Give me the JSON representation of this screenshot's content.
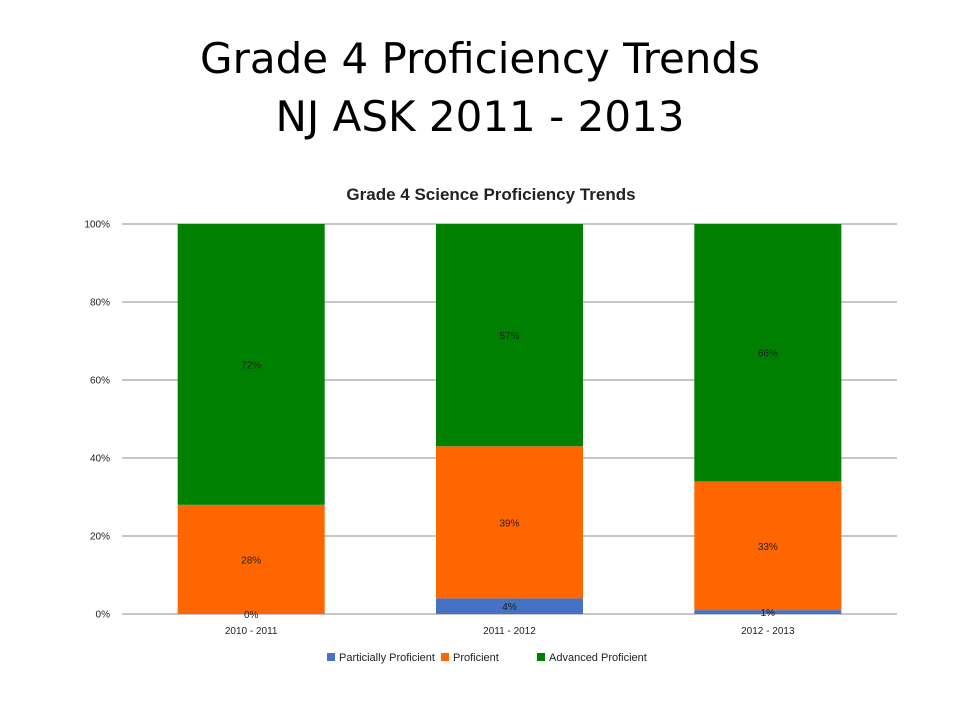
{
  "slide": {
    "title_line1": "Grade 4 Proficiency Trends",
    "title_line2": "NJ ASK 2011 - 2013"
  },
  "chart_data": {
    "type": "bar",
    "stacked": true,
    "title": "Grade 4 Science Proficiency Trends",
    "xlabel": "",
    "ylabel": "",
    "categories": [
      "2010 - 2011",
      "2011 - 2012",
      "2012 - 2013"
    ],
    "ylim": [
      0,
      100
    ],
    "yticks": [
      0,
      20,
      40,
      60,
      80,
      100
    ],
    "ytick_labels": [
      "0%",
      "20%",
      "40%",
      "60%",
      "80%",
      "100%"
    ],
    "grid": true,
    "legend_position": "bottom",
    "series": [
      {
        "name": "Particially Proficient",
        "color": "#4472C4",
        "values": [
          0,
          4,
          1
        ],
        "labels": [
          "0%",
          "4%",
          "1%"
        ]
      },
      {
        "name": "Proficient",
        "color": "#FF6600",
        "values": [
          28,
          39,
          33
        ],
        "labels": [
          "28%",
          "39%",
          "33%"
        ]
      },
      {
        "name": "Advanced Proficient",
        "color": "#008000",
        "values": [
          72,
          57,
          66
        ],
        "labels": [
          "72%",
          "57%",
          "66%"
        ]
      }
    ]
  }
}
